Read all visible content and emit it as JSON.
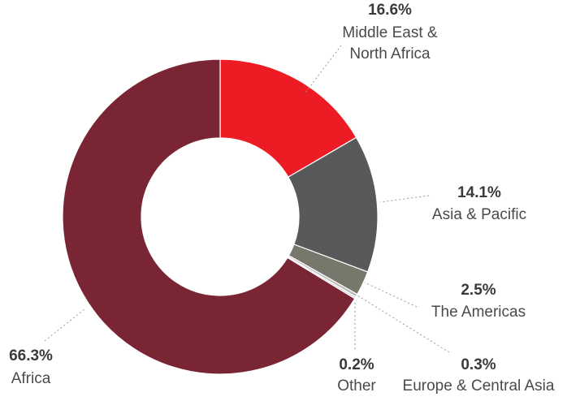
{
  "chart_data": {
    "type": "pie",
    "donut": true,
    "labels": [
      "Middle East & North Africa",
      "Asia & Pacific",
      "The Americas",
      "Europe & Central Asia",
      "Other",
      "Africa"
    ],
    "values": [
      16.6,
      14.1,
      2.5,
      0.3,
      0.2,
      66.3
    ],
    "value_labels": [
      "16.6%",
      "14.1%",
      "2.5%",
      "0.3%",
      "0.2%",
      "66.3%"
    ],
    "colors": [
      "#ed1c24",
      "#58595b",
      "#77786b",
      "#b7b7b7",
      "#d4d4d4",
      "#7a2533"
    ]
  }
}
